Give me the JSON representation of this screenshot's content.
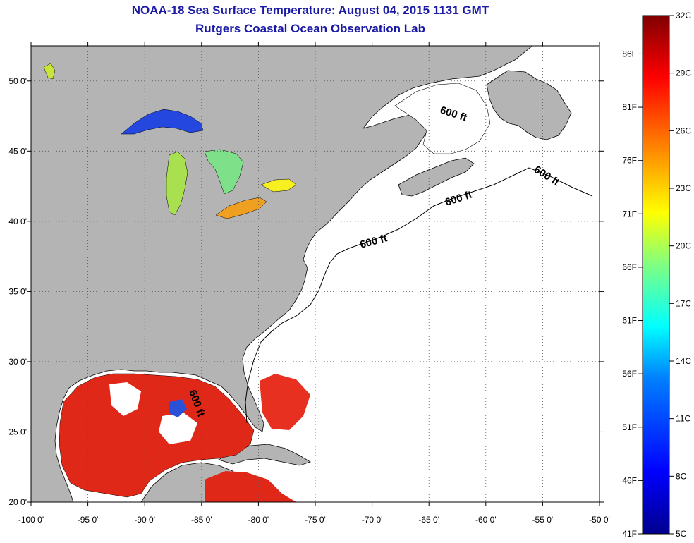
{
  "title_line1": "NOAA-18 Sea Surface Temperature:  August 04, 2015 1131 GMT",
  "title_line2": "Rutgers Coastal Ocean Observation Lab",
  "map": {
    "lon_range": [
      -100,
      -50
    ],
    "lat_range": [
      20,
      52.5
    ],
    "lon_ticks": [
      {
        "v": -100,
        "label": "-100 0'"
      },
      {
        "v": -95,
        "label": "-95 0'"
      },
      {
        "v": -90,
        "label": "-90 0'"
      },
      {
        "v": -85,
        "label": "-85 0'"
      },
      {
        "v": -80,
        "label": "-80 0'"
      },
      {
        "v": -75,
        "label": "-75 0'"
      },
      {
        "v": -70,
        "label": "-70 0'"
      },
      {
        "v": -65,
        "label": "-65 0'"
      },
      {
        "v": -60,
        "label": "-60 0'"
      },
      {
        "v": -55,
        "label": "-55 0'"
      },
      {
        "v": -50,
        "label": "-50 0'"
      }
    ],
    "lat_ticks": [
      {
        "v": 20,
        "label": "20 0'"
      },
      {
        "v": 25,
        "label": "25 0'"
      },
      {
        "v": 30,
        "label": "30 0'"
      },
      {
        "v": 35,
        "label": "35 0'"
      },
      {
        "v": 40,
        "label": "40 0'"
      },
      {
        "v": 45,
        "label": "45 0'"
      },
      {
        "v": 50,
        "label": "50 0'"
      }
    ],
    "isobath_label": "600 ft",
    "land_color": "#b4b4b4",
    "ocean_color": "#ffffff"
  },
  "colorbar": {
    "range_c": [
      5,
      32
    ],
    "celsius_labels": [
      "32C",
      "29C",
      "26C",
      "23C",
      "20C",
      "17C",
      "14C",
      "11C",
      "8C",
      "5C"
    ],
    "fahrenheit_labels": [
      "86F",
      "81F",
      "76F",
      "71F",
      "66F",
      "61F",
      "56F",
      "51F",
      "46F",
      "41F"
    ],
    "colors": [
      "#00008f",
      "#0000ff",
      "#0080ff",
      "#00ffff",
      "#80ff80",
      "#ffff00",
      "#ff8000",
      "#ff0000",
      "#800000"
    ]
  }
}
